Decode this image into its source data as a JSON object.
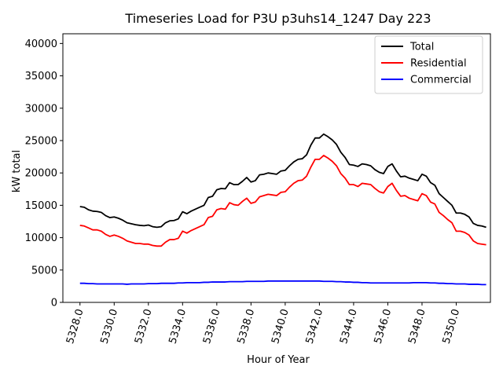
{
  "chart_data": {
    "type": "line",
    "title": "Timeseries Load for P3U p3uhs14_1247  Day 223",
    "xlabel": "Hour of Year",
    "ylabel": "kW total",
    "xlim": [
      5327.0,
      5352.0
    ],
    "ylim": [
      0,
      41500
    ],
    "xticks": [
      5328.0,
      5330.0,
      5332.0,
      5334.0,
      5336.0,
      5338.0,
      5340.0,
      5342.0,
      5344.0,
      5346.0,
      5348.0,
      5350.0
    ],
    "xtick_labels": [
      "5328.0",
      "5330.0",
      "5332.0",
      "5334.0",
      "5336.0",
      "5338.0",
      "5340.0",
      "5342.0",
      "5344.0",
      "5346.0",
      "5348.0",
      "5350.0"
    ],
    "yticks": [
      0,
      5000,
      10000,
      15000,
      20000,
      25000,
      30000,
      35000,
      40000
    ],
    "ytick_labels": [
      "0",
      "5000",
      "10000",
      "15000",
      "20000",
      "25000",
      "30000",
      "35000",
      "40000"
    ],
    "legend_position": "top-right",
    "grid": false,
    "x": [
      5328.0,
      5328.25,
      5328.5,
      5328.75,
      5329.0,
      5329.25,
      5329.5,
      5329.75,
      5330.0,
      5330.25,
      5330.5,
      5330.75,
      5331.0,
      5331.25,
      5331.5,
      5331.75,
      5332.0,
      5332.25,
      5332.5,
      5332.75,
      5333.0,
      5333.25,
      5333.5,
      5333.75,
      5334.0,
      5334.25,
      5334.5,
      5334.75,
      5335.0,
      5335.25,
      5335.5,
      5335.75,
      5336.0,
      5336.25,
      5336.5,
      5336.75,
      5337.0,
      5337.25,
      5337.5,
      5337.75,
      5338.0,
      5338.25,
      5338.5,
      5338.75,
      5339.0,
      5339.25,
      5339.5,
      5339.75,
      5340.0,
      5340.25,
      5340.5,
      5340.75,
      5341.0,
      5341.25,
      5341.5,
      5341.75,
      5342.0,
      5342.25,
      5342.5,
      5342.75,
      5343.0,
      5343.25,
      5343.5,
      5343.75,
      5344.0,
      5344.25,
      5344.5,
      5344.75,
      5345.0,
      5345.25,
      5345.5,
      5345.75,
      5346.0,
      5346.25,
      5346.5,
      5346.75,
      5347.0,
      5347.25,
      5347.5,
      5347.75,
      5348.0,
      5348.25,
      5348.5,
      5348.75,
      5349.0,
      5349.25,
      5349.5,
      5349.75,
      5350.0,
      5350.25,
      5350.5,
      5350.75,
      5351.0,
      5351.25,
      5351.5,
      5351.75
    ],
    "series": [
      {
        "name": "Total",
        "color": "#000000",
        "values": [
          14800,
          14700,
          14300,
          14100,
          14050,
          13900,
          13400,
          13100,
          13200,
          13000,
          12700,
          12300,
          12150,
          12000,
          11900,
          11850,
          11950,
          11700,
          11600,
          11700,
          12300,
          12600,
          12650,
          12900,
          14000,
          13700,
          14100,
          14400,
          14700,
          15000,
          16200,
          16400,
          17400,
          17600,
          17550,
          18500,
          18200,
          18200,
          18700,
          19300,
          18600,
          18800,
          19700,
          19800,
          20000,
          19900,
          19800,
          20300,
          20400,
          21100,
          21700,
          22100,
          22200,
          22800,
          24300,
          25400,
          25400,
          26000,
          25600,
          25100,
          24400,
          23200,
          22400,
          21300,
          21200,
          21000,
          21400,
          21300,
          21100,
          20500,
          20100,
          19900,
          21000,
          21400,
          20300,
          19400,
          19500,
          19200,
          19000,
          18800,
          19800,
          19500,
          18500,
          18100,
          16800,
          16200,
          15600,
          15000,
          13800,
          13800,
          13600,
          13200,
          12200,
          11900,
          11800,
          11600
        ]
      },
      {
        "name": "Residential",
        "color": "#ff0000",
        "values": [
          11900,
          11800,
          11500,
          11200,
          11200,
          11000,
          10500,
          10200,
          10400,
          10200,
          9900,
          9500,
          9300,
          9100,
          9100,
          9000,
          9000,
          8800,
          8700,
          8700,
          9300,
          9700,
          9700,
          9900,
          11000,
          10700,
          11100,
          11400,
          11700,
          12000,
          13100,
          13300,
          14300,
          14500,
          14400,
          15400,
          15100,
          15000,
          15600,
          16100,
          15300,
          15500,
          16300,
          16500,
          16700,
          16600,
          16500,
          17000,
          17100,
          17800,
          18400,
          18800,
          18900,
          19500,
          20900,
          22100,
          22100,
          22700,
          22300,
          21800,
          21100,
          19900,
          19200,
          18200,
          18200,
          17900,
          18400,
          18300,
          18200,
          17600,
          17100,
          16900,
          17900,
          18400,
          17300,
          16400,
          16500,
          16100,
          15900,
          15700,
          16800,
          16500,
          15500,
          15200,
          13900,
          13400,
          12800,
          12300,
          11000,
          11000,
          10800,
          10400,
          9500,
          9100,
          9000,
          8900
        ]
      },
      {
        "name": "Commercial",
        "color": "#0000ff",
        "values": [
          2950,
          2950,
          2900,
          2900,
          2850,
          2850,
          2850,
          2850,
          2850,
          2850,
          2850,
          2800,
          2850,
          2850,
          2850,
          2850,
          2900,
          2900,
          2900,
          2950,
          2950,
          2950,
          2950,
          3000,
          3000,
          3050,
          3050,
          3050,
          3050,
          3100,
          3100,
          3150,
          3150,
          3150,
          3150,
          3200,
          3200,
          3200,
          3200,
          3250,
          3250,
          3250,
          3250,
          3250,
          3300,
          3300,
          3300,
          3300,
          3300,
          3300,
          3300,
          3300,
          3300,
          3300,
          3300,
          3300,
          3300,
          3250,
          3250,
          3250,
          3200,
          3200,
          3150,
          3150,
          3100,
          3100,
          3050,
          3050,
          3000,
          3000,
          3000,
          3000,
          3000,
          3000,
          3000,
          3000,
          3000,
          3000,
          3050,
          3050,
          3050,
          3050,
          3000,
          3000,
          2950,
          2950,
          2900,
          2900,
          2850,
          2850,
          2850,
          2800,
          2800,
          2800,
          2750,
          2750
        ]
      }
    ]
  }
}
